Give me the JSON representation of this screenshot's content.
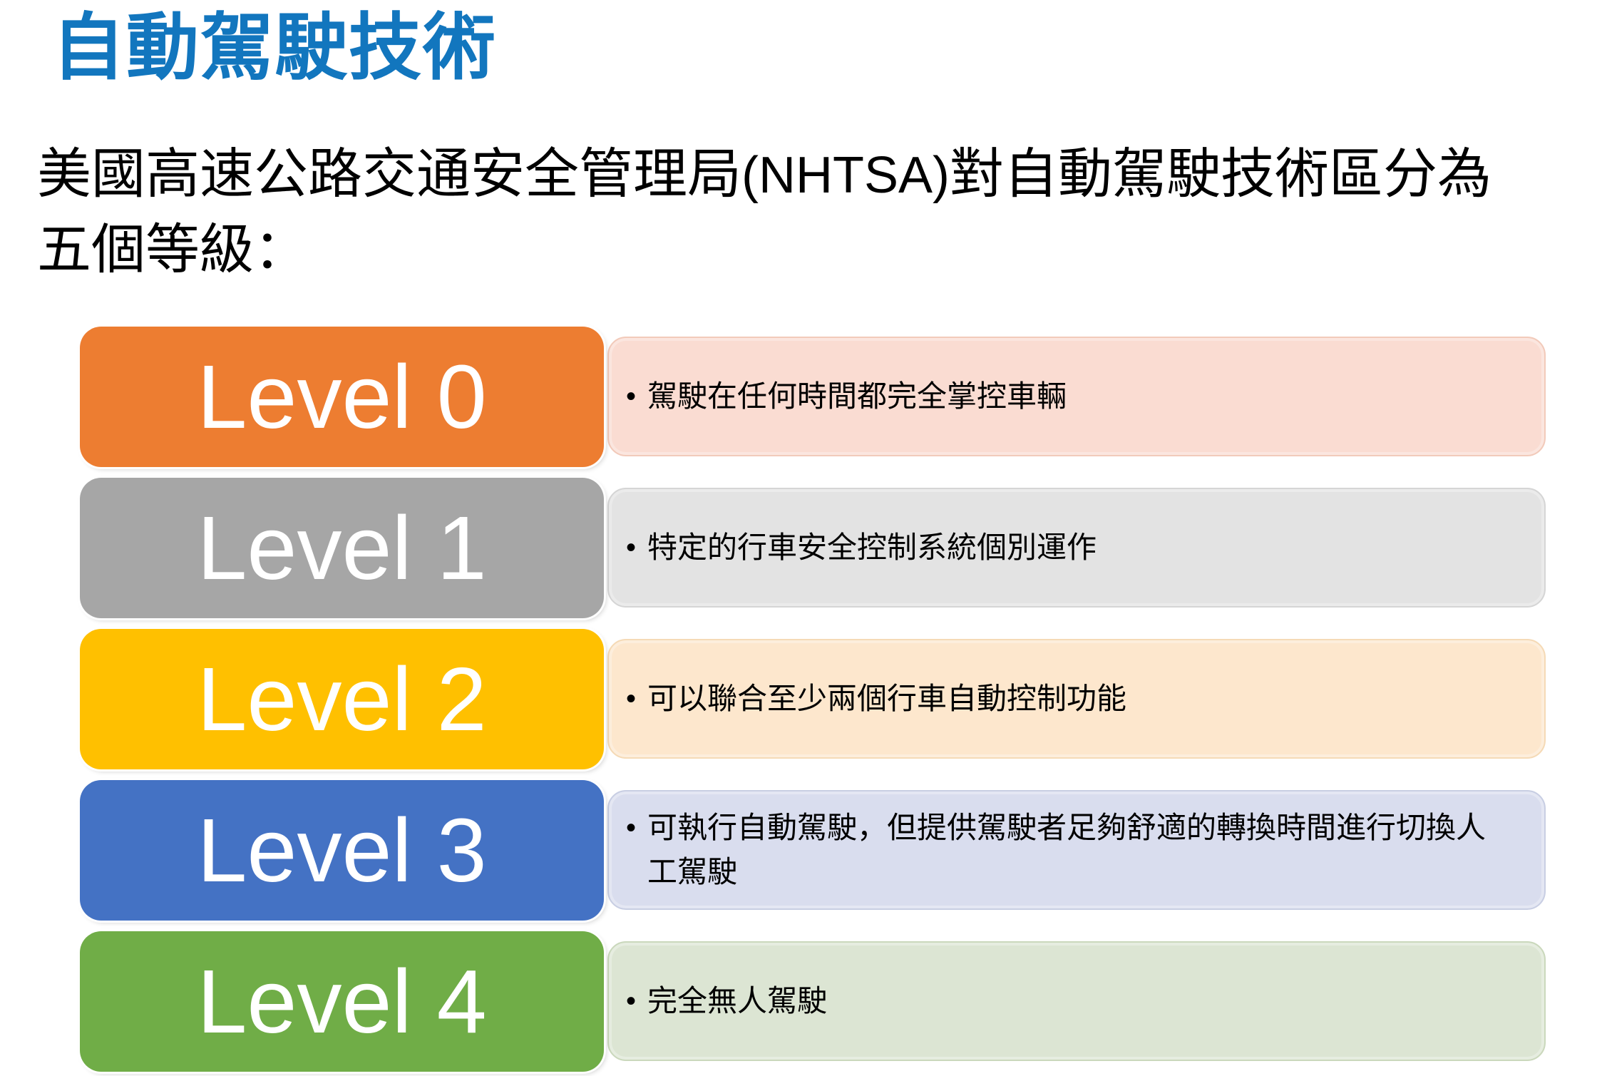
{
  "page": {
    "title": "自動駕駛技術",
    "title_color": "#1276BE",
    "intro": {
      "line1_prefix": "美國高速公路交通安全管理局",
      "line1_latin": "(NHTSA)",
      "line1_suffix": "對自動駕駛技術區分為",
      "line2": "五個等級："
    }
  },
  "bullet_char": "•",
  "levels": [
    {
      "label": "Level 0",
      "badge_color": "#ED7D31",
      "panel_color": "#FADCD2",
      "panel_border_color": "#F2CABA",
      "lines": [
        "駕駛在任何時間都完全掌控車輛"
      ]
    },
    {
      "label": "Level 1",
      "badge_color": "#A6A6A6",
      "panel_color": "#E3E3E3",
      "panel_border_color": "#D5D5D5",
      "lines": [
        "特定的行車安全控制系統個別運作"
      ]
    },
    {
      "label": "Level 2",
      "badge_color": "#FFC000",
      "panel_color": "#FDE7CD",
      "panel_border_color": "#F5DAB6",
      "lines": [
        "可以聯合至少兩個行車自動控制功能"
      ]
    },
    {
      "label": "Level 3",
      "badge_color": "#4472C4",
      "panel_color": "#D9DDEE",
      "panel_border_color": "#C8CEE3",
      "lines": [
        "可執行自動駕駛，但提供駕駛者足夠舒適的轉換時間進行切換人",
        "工駕駛"
      ]
    },
    {
      "label": "Level 4",
      "badge_color": "#70AD47",
      "panel_color": "#DCE5D3",
      "panel_border_color": "#CAD8BC",
      "lines": [
        "完全無人駕駛"
      ]
    }
  ]
}
